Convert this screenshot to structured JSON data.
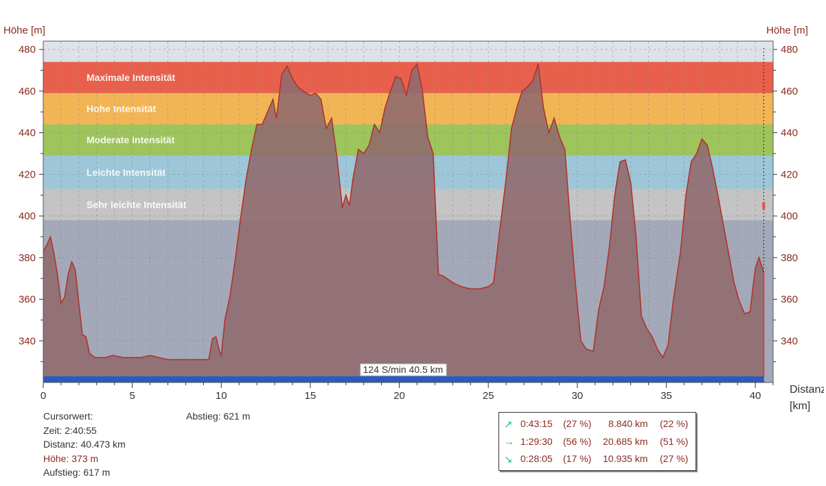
{
  "chart_data": {
    "type": "area",
    "ylabel_left": "Höhe [m]",
    "ylabel_right": "Höhe [m]",
    "xlabel": "Distanz [km]",
    "xlim": [
      0,
      41
    ],
    "ylim": [
      320,
      484
    ],
    "x_ticks": [
      0,
      5,
      10,
      15,
      20,
      25,
      30,
      35,
      40
    ],
    "y_ticks": [
      340,
      360,
      380,
      400,
      420,
      440,
      460,
      480
    ],
    "grid": true,
    "zones": [
      {
        "label": "Maximale Intensität",
        "from": 459,
        "to": 474,
        "color": "#e8604c"
      },
      {
        "label": "Hohe Intensität",
        "from": 444,
        "to": 459,
        "color": "#f2b556"
      },
      {
        "label": "Moderate Intensität",
        "from": 429,
        "to": 444,
        "color": "#9ec45c"
      },
      {
        "label": "Leichte Intensität",
        "from": 413,
        "to": 429,
        "color": "#9dc6d8"
      },
      {
        "label": "Sehr leichte Intensität",
        "from": 398,
        "to": 413,
        "color": "#c4c4c4"
      }
    ],
    "series": [
      {
        "x": [
          0,
          0.2,
          0.4,
          0.6,
          0.8,
          1.0,
          1.2,
          1.4,
          1.6,
          1.8,
          2.0,
          2.2,
          2.4,
          2.6,
          2.9,
          3.5,
          3.9,
          4.5,
          5.0,
          5.5,
          6.0,
          6.5,
          7.0,
          7.5,
          8.0,
          8.5,
          9.0,
          9.3,
          9.5,
          9.7,
          9.9,
          10.0,
          10.2,
          10.5,
          10.8,
          11.1,
          11.4,
          11.7,
          12.0,
          12.3,
          12.6,
          12.9,
          13.1,
          13.4,
          13.7,
          14.0,
          14.3,
          14.6,
          15.0,
          15.3,
          15.6,
          15.9,
          16.2,
          16.5,
          16.8,
          17.0,
          17.2,
          17.4,
          17.7,
          18.0,
          18.3,
          18.6,
          18.9,
          19.2,
          19.5,
          19.8,
          20.1,
          20.4,
          20.7,
          21.0,
          21.3,
          21.6,
          21.9,
          22.2,
          22.5,
          23.0,
          23.5,
          24.0,
          24.5,
          25.0,
          25.3,
          25.6,
          26.0,
          26.3,
          26.6,
          26.9,
          27.2,
          27.5,
          27.8,
          28.1,
          28.4,
          28.7,
          29.0,
          29.3,
          29.6,
          29.9,
          30.2,
          30.5,
          30.9,
          31.2,
          31.5,
          31.8,
          32.1,
          32.4,
          32.7,
          33.0,
          33.3,
          33.6,
          33.9,
          34.2,
          34.5,
          34.8,
          35.1,
          35.4,
          35.8,
          36.1,
          36.4,
          36.7,
          37.0,
          37.3,
          37.6,
          37.9,
          38.2,
          38.5,
          38.8,
          39.1,
          39.4,
          39.7,
          40.0,
          40.2,
          40.47
        ],
        "values": [
          383,
          386,
          390,
          382,
          372,
          358,
          361,
          372,
          378,
          374,
          358,
          343,
          342,
          334,
          332,
          332,
          333,
          332,
          332,
          332,
          333,
          332,
          331,
          331,
          331,
          331,
          331,
          331,
          341,
          342,
          335,
          333,
          350,
          362,
          380,
          400,
          418,
          432,
          444,
          444,
          450,
          456,
          447,
          468,
          472,
          466,
          462,
          460,
          458,
          459,
          456,
          442,
          447,
          428,
          404,
          410,
          405,
          418,
          432,
          430,
          434,
          444,
          440,
          452,
          460,
          467,
          466,
          458,
          470,
          473,
          460,
          438,
          430,
          372,
          371,
          368,
          366,
          365,
          365,
          366,
          368,
          390,
          418,
          442,
          452,
          460,
          462,
          465,
          473,
          452,
          440,
          447,
          438,
          432,
          398,
          367,
          340,
          336,
          335,
          355,
          366,
          385,
          410,
          426,
          427,
          416,
          390,
          352,
          346,
          342,
          336,
          332,
          338,
          360,
          383,
          410,
          426,
          430,
          437,
          434,
          423,
          410,
          396,
          382,
          368,
          359,
          353,
          354,
          375,
          380,
          373
        ]
      }
    ],
    "marker_x": 40.47,
    "bottom_bar_label": "124 S/min 40.5 km",
    "colors": {
      "area": "#8f6a6d",
      "line": "#b0332a",
      "band_bottom": "#a4a9b9",
      "band_top": "#dfe4ea",
      "bar": "#2b5bbf"
    }
  },
  "cursor_info": {
    "title": "Cursorwert:",
    "zeit": "Zeit: 2:40:55",
    "distanz": "Distanz: 40.473 km",
    "hoehe": "Höhe:  373 m",
    "aufstieg": "Aufstieg: 617 m",
    "abstieg": "Abstieg: 621 m"
  },
  "stats": [
    {
      "icon": "↗",
      "time": "0:43:15",
      "time_pct": "(27 %)",
      "dist": "8.840 km",
      "dist_pct": "(22 %)"
    },
    {
      "icon": "→",
      "time": "1:29:30",
      "time_pct": "(56 %)",
      "dist": "20.685 km",
      "dist_pct": "(51 %)"
    },
    {
      "icon": "↘",
      "time": "0:28:05",
      "time_pct": "(17 %)",
      "dist": "10.935 km",
      "dist_pct": "(27 %)"
    }
  ]
}
